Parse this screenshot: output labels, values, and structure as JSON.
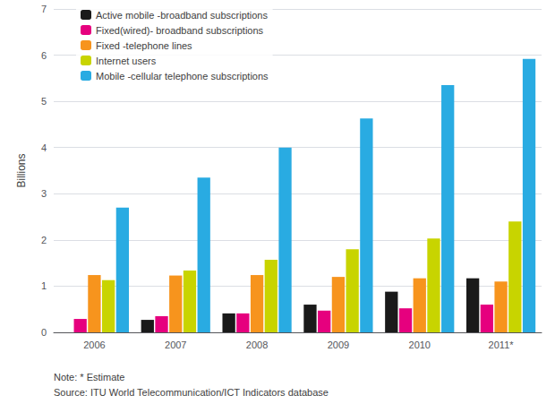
{
  "chart_data": {
    "type": "bar",
    "categories": [
      "2006",
      "2007",
      "2008",
      "2009",
      "2010",
      "2011*"
    ],
    "series": [
      {
        "name": "Active mobile -broadband subscriptions",
        "color": "#1a1a1a",
        "values": [
          0.0,
          0.27,
          0.41,
          0.6,
          0.88,
          1.17
        ]
      },
      {
        "name": "Fixed(wired)- broadband subscriptions",
        "color": "#e6007e",
        "values": [
          0.29,
          0.35,
          0.41,
          0.47,
          0.52,
          0.6
        ]
      },
      {
        "name": "Fixed -telephone lines",
        "color": "#f7941d",
        "values": [
          1.24,
          1.23,
          1.24,
          1.2,
          1.17,
          1.1
        ]
      },
      {
        "name": "Internet users",
        "color": "#c8d400",
        "values": [
          1.13,
          1.34,
          1.57,
          1.8,
          2.03,
          2.4
        ]
      },
      {
        "name": "Mobile -cellular telephone subscriptions",
        "color": "#29abe2",
        "values": [
          2.7,
          3.35,
          4.0,
          4.63,
          5.35,
          5.92
        ]
      }
    ],
    "ylabel": "Billions",
    "ylim": [
      0,
      7
    ],
    "yticks": [
      0,
      1,
      2,
      3,
      4,
      5,
      6,
      7
    ],
    "grid": true,
    "legend": "upper left",
    "annotations": [
      "Note: * Estimate",
      "Source: ITU World Telecommunication/ICT Indicators database"
    ]
  }
}
